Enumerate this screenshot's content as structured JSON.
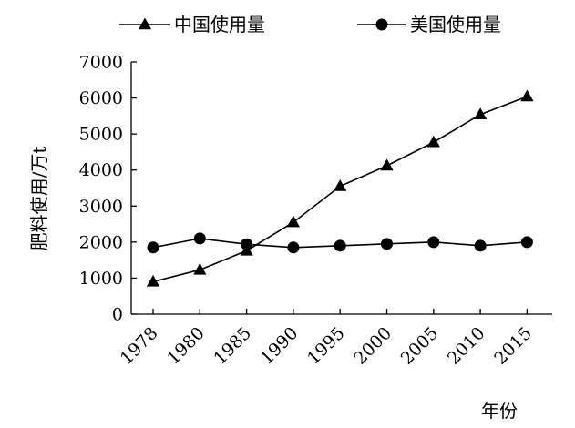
{
  "chart_data": {
    "type": "line",
    "title": "",
    "xlabel": "年份",
    "ylabel": "肥料使用/万t",
    "categories": [
      "1978",
      "1980",
      "1985",
      "1990",
      "1995",
      "2000",
      "2005",
      "2010",
      "2015"
    ],
    "ylim": [
      0,
      7000
    ],
    "yticks": [
      0,
      1000,
      2000,
      3000,
      4000,
      5000,
      6000,
      7000
    ],
    "grid": false,
    "legend_position": "top",
    "series": [
      {
        "name": "中国使用量",
        "marker": "triangle",
        "color": "#000000",
        "values": [
          900,
          1230,
          1760,
          2550,
          3550,
          4120,
          4770,
          5540,
          6040
        ]
      },
      {
        "name": "美国使用量",
        "marker": "circle",
        "color": "#000000",
        "values": [
          1850,
          2100,
          1940,
          1850,
          1900,
          1950,
          2000,
          1900,
          2000
        ]
      }
    ]
  }
}
